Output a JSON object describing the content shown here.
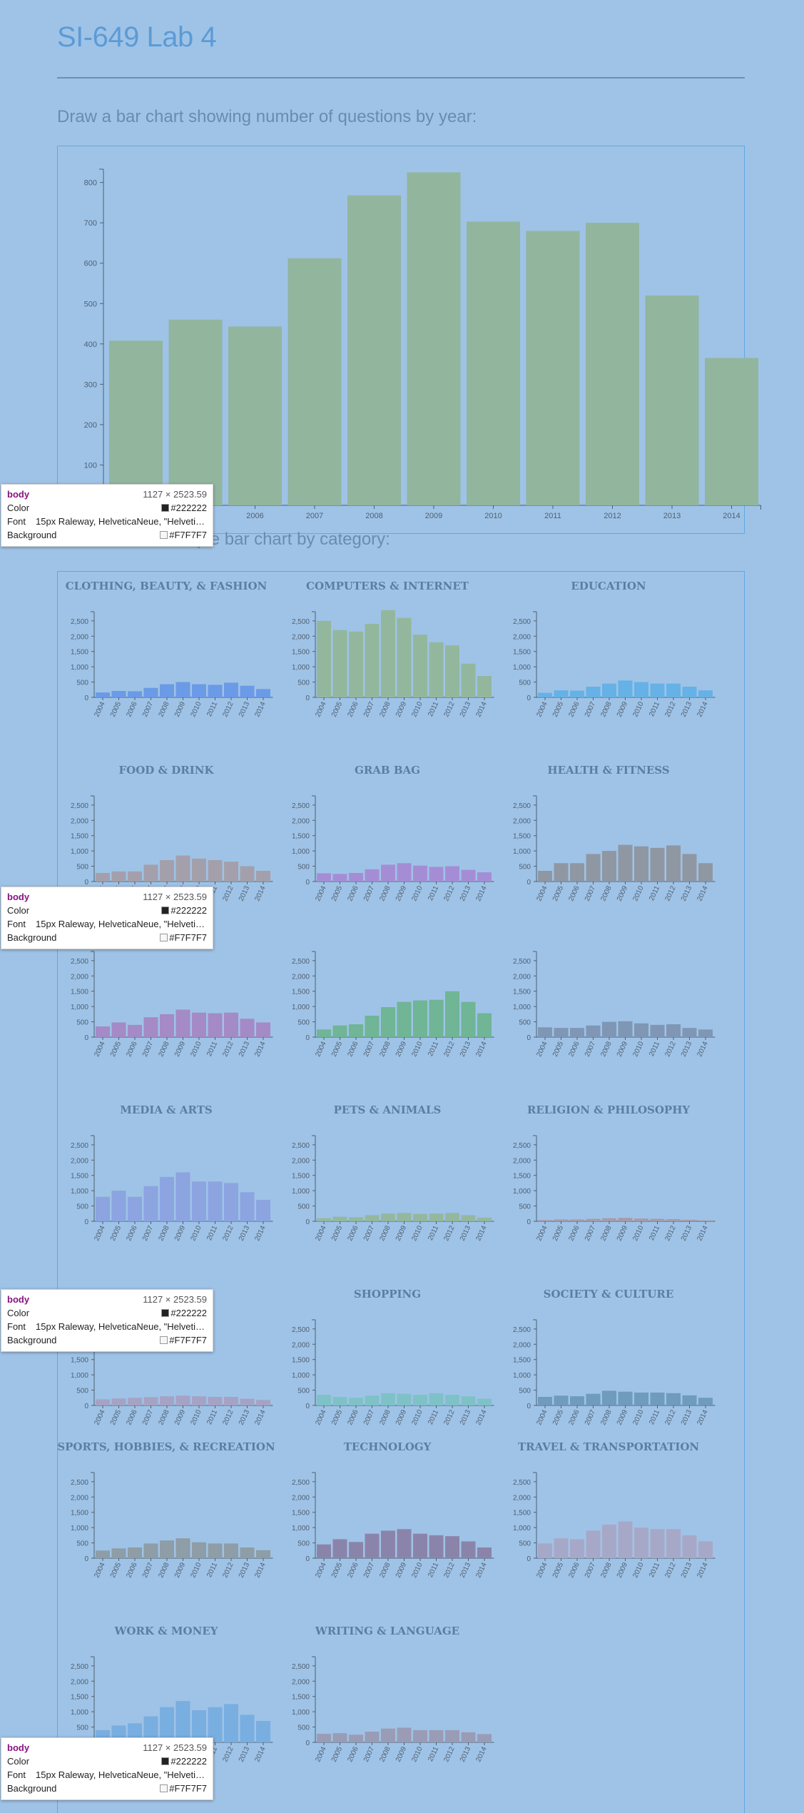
{
  "page": {
    "title": "SI-649 Lab 4",
    "bar_heading": "Draw a bar chart showing number of questions by year:",
    "small_heading": "Draw a small multiple bar chart by category:"
  },
  "colors": {
    "main_bar": "#92b59e",
    "title": "#5b9bd6",
    "axis": "#4e5f73"
  },
  "chart_data": [
    {
      "type": "bar",
      "title": "",
      "categories": [
        "2004",
        "2005",
        "2006",
        "2007",
        "2008",
        "2009",
        "2010",
        "2011",
        "2012",
        "2013",
        "2014"
      ],
      "values": [
        408,
        460,
        443,
        612,
        768,
        825,
        703,
        680,
        700,
        520,
        365
      ],
      "yticks": [
        100,
        200,
        300,
        400,
        500,
        600,
        700,
        800
      ],
      "ylim": [
        0,
        840
      ]
    },
    {
      "type": "bar",
      "small_multiples": true,
      "categories": [
        "2004",
        "2005",
        "2006",
        "2007",
        "2008",
        "2009",
        "2010",
        "2011",
        "2012",
        "2013",
        "2014"
      ],
      "yticks": [
        "500",
        "1,000",
        "1,500",
        "2,000",
        "2,500"
      ],
      "ylim": [
        0,
        2800
      ],
      "series": [
        {
          "name": "CLOTHING, BEAUTY, & FASHION",
          "color": "#6b9ae6",
          "values": [
            160,
            210,
            200,
            310,
            430,
            500,
            430,
            410,
            480,
            380,
            270
          ]
        },
        {
          "name": "COMPUTERS & INTERNET",
          "color": "#93b79d",
          "values": [
            2500,
            2200,
            2150,
            2400,
            2850,
            2600,
            2050,
            1800,
            1700,
            1100,
            700
          ]
        },
        {
          "name": "EDUCATION",
          "color": "#66b1e6",
          "values": [
            150,
            230,
            220,
            350,
            450,
            550,
            500,
            450,
            450,
            350,
            230
          ]
        },
        {
          "name": "FOOD & DRINK",
          "color": "#a3a0ac",
          "values": [
            280,
            330,
            330,
            550,
            700,
            850,
            750,
            700,
            650,
            500,
            350
          ]
        },
        {
          "name": "GRAB BAG",
          "color": "#a58dd6",
          "values": [
            270,
            250,
            280,
            400,
            550,
            600,
            520,
            480,
            500,
            380,
            300
          ]
        },
        {
          "name": "HEALTH & FITNESS",
          "color": "#8f97a3",
          "values": [
            350,
            600,
            600,
            900,
            1000,
            1200,
            1150,
            1100,
            1180,
            900,
            600
          ]
        },
        {
          "name": "",
          "color": "#a48ac6",
          "values": [
            350,
            480,
            400,
            650,
            750,
            900,
            800,
            780,
            800,
            600,
            480
          ]
        },
        {
          "name": "",
          "color": "#6fb596",
          "values": [
            250,
            380,
            420,
            700,
            980,
            1150,
            1200,
            1220,
            1500,
            1150,
            780
          ]
        },
        {
          "name": "",
          "color": "#7f96b5",
          "values": [
            320,
            300,
            300,
            380,
            500,
            520,
            450,
            400,
            420,
            300,
            250
          ]
        },
        {
          "name": "MEDIA & ARTS",
          "color": "#8ca4e0",
          "values": [
            800,
            1000,
            800,
            1150,
            1450,
            1600,
            1300,
            1300,
            1250,
            950,
            700
          ]
        },
        {
          "name": "PETS & ANIMALS",
          "color": "#93b89e",
          "values": [
            100,
            150,
            130,
            200,
            250,
            270,
            240,
            250,
            270,
            200,
            120
          ]
        },
        {
          "name": "RELIGION & PHILOSOPHY",
          "color": "#a69aaa",
          "values": [
            40,
            60,
            60,
            80,
            100,
            110,
            90,
            80,
            70,
            50,
            30
          ]
        },
        {
          "name": "",
          "color": "#a5a3c5",
          "values": [
            200,
            230,
            250,
            270,
            300,
            320,
            300,
            280,
            280,
            220,
            180
          ]
        },
        {
          "name": "SHOPPING",
          "color": "#7ec2c8",
          "values": [
            350,
            280,
            250,
            320,
            400,
            380,
            350,
            400,
            350,
            300,
            220
          ]
        },
        {
          "name": "SOCIETY & CULTURE",
          "color": "#6f9bbc",
          "values": [
            280,
            320,
            300,
            380,
            480,
            450,
            420,
            420,
            400,
            330,
            250
          ]
        },
        {
          "name": "SPORTS, HOBBIES, & RECREATION",
          "color": "#8e9da6",
          "values": [
            250,
            320,
            350,
            480,
            580,
            650,
            520,
            480,
            480,
            350,
            260
          ]
        },
        {
          "name": "TECHNOLOGY",
          "color": "#8b84aa",
          "values": [
            450,
            620,
            530,
            800,
            900,
            950,
            800,
            750,
            720,
            550,
            350
          ]
        },
        {
          "name": "TRAVEL & TRANSPORTATION",
          "color": "#a7a8c8",
          "values": [
            480,
            650,
            620,
            900,
            1100,
            1200,
            1000,
            950,
            950,
            750,
            550
          ]
        },
        {
          "name": "WORK & MONEY",
          "color": "#79aee0",
          "values": [
            400,
            550,
            620,
            850,
            1150,
            1350,
            1050,
            1150,
            1250,
            900,
            700
          ]
        },
        {
          "name": "WRITING & LANGUAGE",
          "color": "#9a9cb6",
          "values": [
            280,
            300,
            250,
            350,
            450,
            480,
            400,
            400,
            400,
            330,
            270
          ]
        }
      ]
    }
  ],
  "tooltip": {
    "tag": "body",
    "size": "1127 × 2523.59",
    "color_label": "Color",
    "color_value": "#222222",
    "font_label": "Font",
    "font_value": "15px Raleway, HelveticaNeue, \"Helvetic…",
    "bg_label": "Background",
    "bg_value": "#F7F7F7"
  }
}
